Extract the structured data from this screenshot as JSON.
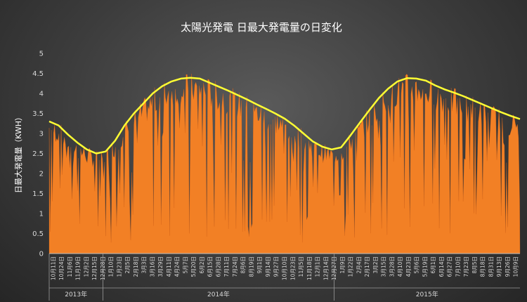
{
  "chart_data": {
    "type": "area",
    "title": "太陽光発電 日最大発電量の日変化",
    "xlabel": "",
    "ylabel": "日最大発電量（KWH）",
    "ylim": [
      0,
      5
    ],
    "yticks": [
      "0",
      "0.5",
      "1",
      "1.5",
      "2",
      "2.5",
      "3",
      "3.5",
      "4",
      "4.5",
      "5"
    ],
    "grid": false,
    "legend": "none",
    "colors": {
      "area": "#f28025",
      "trend": "#ffff33"
    },
    "date_labels": [
      "10月11日",
      "10月24日",
      "11月6日",
      "11月19日",
      "12月2日",
      "12月15日",
      "12月28日",
      "1月10日",
      "1月23日",
      "2月5日",
      "2月18日",
      "3月3日",
      "3月16日",
      "3月29日",
      "4月11日",
      "4月24日",
      "5月7日",
      "5月20日",
      "6月2日",
      "6月15日",
      "6月28日",
      "7月11日",
      "7月24日",
      "8月6日",
      "8月19日",
      "9月1日",
      "9月14日",
      "9月27日",
      "10月10日",
      "10月23日",
      "11月5日",
      "11月18日",
      "12月1日",
      "12月14日",
      "12月27日",
      "1月9日",
      "1月22日",
      "2月4日",
      "2月17日",
      "3月2日",
      "3月15日",
      "3月28日",
      "4月10日",
      "4月23日",
      "5月6日",
      "5月19日",
      "6月1日",
      "6月14日",
      "6月27日",
      "7月10日",
      "7月23日",
      "8月5日",
      "8月18日",
      "8月31日",
      "9月13日",
      "9月26日",
      "10月9日"
    ],
    "years": [
      "2013年",
      "2014年",
      "2015年"
    ],
    "trend": {
      "name": "",
      "points": [
        [
          0,
          3.3
        ],
        [
          13,
          3.2
        ],
        [
          26,
          2.97
        ],
        [
          39,
          2.77
        ],
        [
          52,
          2.6
        ],
        [
          65,
          2.5
        ],
        [
          78,
          2.55
        ],
        [
          91,
          2.82
        ],
        [
          104,
          3.2
        ],
        [
          117,
          3.5
        ],
        [
          130,
          3.75
        ],
        [
          143,
          4.0
        ],
        [
          156,
          4.18
        ],
        [
          169,
          4.3
        ],
        [
          182,
          4.37
        ],
        [
          195,
          4.39
        ],
        [
          208,
          4.37
        ],
        [
          221,
          4.27
        ],
        [
          234,
          4.17
        ],
        [
          247,
          4.07
        ],
        [
          260,
          3.96
        ],
        [
          273,
          3.85
        ],
        [
          286,
          3.73
        ],
        [
          299,
          3.62
        ],
        [
          312,
          3.5
        ],
        [
          325,
          3.37
        ],
        [
          338,
          3.2
        ],
        [
          351,
          3.0
        ],
        [
          364,
          2.8
        ],
        [
          377,
          2.67
        ],
        [
          390,
          2.6
        ],
        [
          403,
          2.65
        ],
        [
          416,
          2.95
        ],
        [
          429,
          3.27
        ],
        [
          442,
          3.58
        ],
        [
          455,
          3.88
        ],
        [
          468,
          4.12
        ],
        [
          481,
          4.3
        ],
        [
          494,
          4.38
        ],
        [
          507,
          4.37
        ],
        [
          520,
          4.32
        ],
        [
          533,
          4.2
        ],
        [
          546,
          4.1
        ],
        [
          559,
          4.02
        ],
        [
          572,
          3.93
        ],
        [
          585,
          3.83
        ],
        [
          598,
          3.73
        ],
        [
          611,
          3.63
        ],
        [
          624,
          3.53
        ],
        [
          637,
          3.44
        ],
        [
          650,
          3.36
        ]
      ]
    }
  }
}
